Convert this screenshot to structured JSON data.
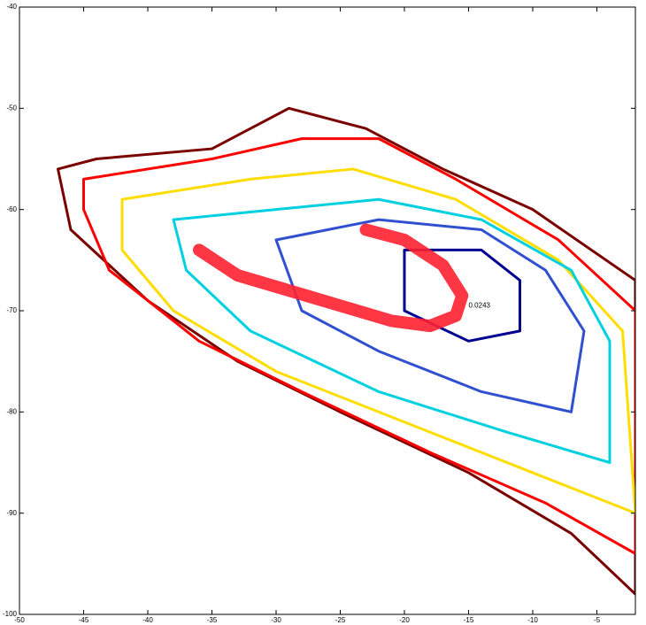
{
  "chart_data": {
    "type": "contour",
    "xlim": [
      -50,
      -2
    ],
    "ylim": [
      -100,
      -40
    ],
    "xticks": [
      -50,
      -45,
      -40,
      -35,
      -30,
      -25,
      -20,
      -15,
      -10,
      -5
    ],
    "yticks": [
      -100,
      -90,
      -80,
      -70,
      -60,
      -50,
      -40
    ],
    "contours": [
      {
        "color": "#7a0000",
        "x": [
          -47,
          -44,
          -35,
          -29,
          -23,
          -17,
          -10,
          -2,
          -2,
          -7,
          -15,
          -25,
          -33,
          -40,
          -46
        ],
        "y": [
          -56,
          -55,
          -54,
          -50,
          -52,
          -56,
          -60,
          -67,
          -98,
          -92,
          -86,
          -80,
          -75,
          -69,
          -62
        ]
      },
      {
        "color": "#ff0000",
        "x": [
          -45,
          -35,
          -28,
          -22,
          -16,
          -8,
          -2,
          -2,
          -9,
          -18,
          -28,
          -36,
          -43,
          -45
        ],
        "y": [
          -57,
          -55,
          -53,
          -53,
          -57,
          -63,
          -70,
          -94,
          -89,
          -84,
          -78,
          -73,
          -66,
          -60
        ]
      },
      {
        "color": "#ffdd00",
        "x": [
          -42,
          -32,
          -24,
          -16,
          -8,
          -3,
          -2,
          -10,
          -20,
          -30,
          -38,
          -42
        ],
        "y": [
          -59,
          -57,
          -56,
          -59,
          -65,
          -72,
          -90,
          -86,
          -81,
          -76,
          -70,
          -64
        ]
      },
      {
        "color": "#00d0e0",
        "x": [
          -38,
          -30,
          -22,
          -14,
          -7,
          -4,
          -4,
          -12,
          -22,
          -32,
          -37
        ],
        "y": [
          -61,
          -60,
          -59,
          -61,
          -66,
          -73,
          -85,
          -82,
          -78,
          -72,
          -66
        ]
      },
      {
        "color": "#3050d0",
        "x": [
          -30,
          -22,
          -14,
          -9,
          -6,
          -7,
          -14,
          -22,
          -28
        ],
        "y": [
          -63,
          -61,
          -62,
          -66,
          -72,
          -80,
          -78,
          -74,
          -70
        ]
      },
      {
        "color": "#000090",
        "x": [
          -20,
          -14,
          -11,
          -11,
          -15,
          -20
        ],
        "y": [
          -64,
          -64,
          -67,
          -72,
          -73,
          -70
        ]
      }
    ],
    "stroke": {
      "color": "#ff2030",
      "x": [
        -36,
        -33,
        -29,
        -25,
        -21,
        -18,
        -16,
        -15.5,
        -17,
        -20,
        -23
      ],
      "y": [
        -64,
        -66.5,
        -68,
        -69.5,
        -71,
        -71.5,
        -70.5,
        -68.5,
        -65.5,
        -63,
        -62
      ]
    },
    "annotation": {
      "text": "0.0243",
      "x": -15,
      "y": -69.5
    }
  }
}
